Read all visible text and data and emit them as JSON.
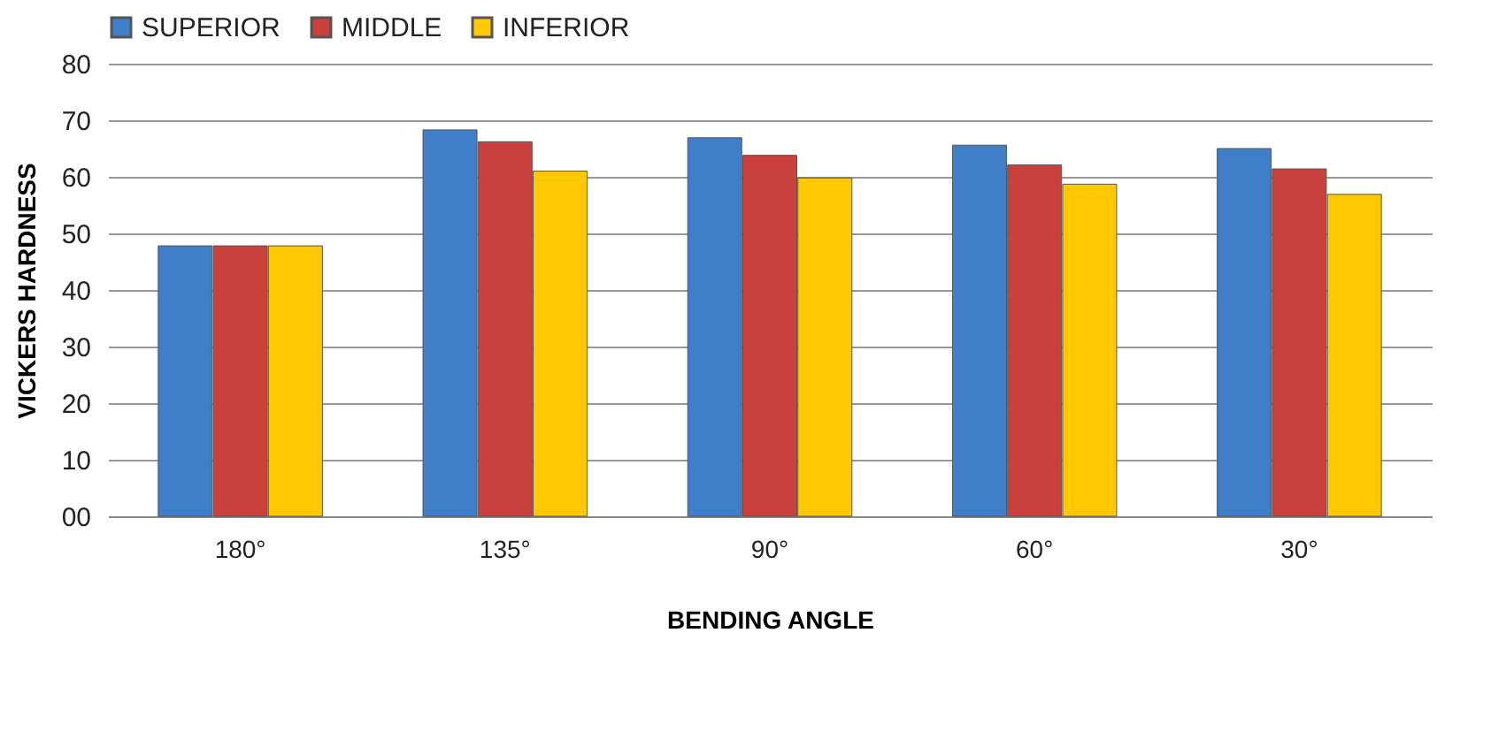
{
  "chart_data": {
    "type": "bar",
    "xlabel": "BENDING ANGLE",
    "ylabel": "VICKERS HARDNESS",
    "categories": [
      "180°",
      "135°",
      "90°",
      "60°",
      "30°"
    ],
    "series": [
      {
        "name": "SUPERIOR",
        "color": "#3f7ec9",
        "values": [
          47.8,
          68.3,
          66.9,
          65.6,
          65.0
        ]
      },
      {
        "name": "MIDDLE",
        "color": "#c9403c",
        "values": [
          47.8,
          66.2,
          63.8,
          62.1,
          61.4
        ]
      },
      {
        "name": "INFERIOR",
        "color": "#ffc800",
        "values": [
          47.8,
          61.0,
          59.8,
          58.7,
          56.9
        ]
      }
    ],
    "ylim": [
      0,
      80
    ],
    "yticks": [
      {
        "value": 0,
        "label": "00"
      },
      10,
      20,
      30,
      40,
      50,
      60,
      70,
      80
    ],
    "grid": "y",
    "legend": "top"
  }
}
